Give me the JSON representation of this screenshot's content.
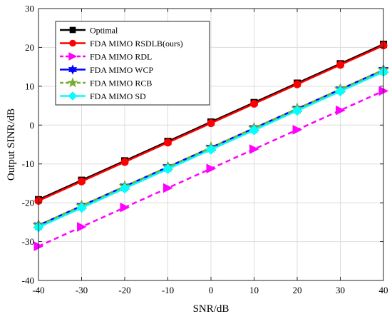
{
  "chart_data": {
    "type": "line",
    "xlabel": "SNR/dB",
    "ylabel": "Output SINR/dB",
    "xlim": [
      -40,
      40
    ],
    "ylim": [
      -40,
      30
    ],
    "xticks": [
      -40,
      -30,
      -20,
      -10,
      0,
      10,
      20,
      30,
      40
    ],
    "yticks": [
      -40,
      -30,
      -20,
      -10,
      0,
      10,
      20,
      30
    ],
    "grid": true,
    "legend_position": "top-left",
    "x": [
      -40,
      -30,
      -20,
      -10,
      0,
      10,
      20,
      30,
      40
    ],
    "series": [
      {
        "name": "Optimal",
        "color": "#000000",
        "marker": "square",
        "dash": "solid",
        "values": [
          -19.2,
          -14.2,
          -9.2,
          -4.2,
          0.8,
          5.8,
          10.8,
          15.8,
          20.8
        ]
      },
      {
        "name": "FDA MIMO RSDLB(ours)",
        "color": "#ff0000",
        "marker": "circle",
        "dash": "solid",
        "values": [
          -19.5,
          -14.5,
          -9.5,
          -4.5,
          0.5,
          5.5,
          10.5,
          15.5,
          20.5
        ]
      },
      {
        "name": "FDA MIMO RDL",
        "color": "#ff00ff",
        "marker": "triangle-right",
        "dash": "dashed",
        "values": [
          -31.2,
          -26.2,
          -21.2,
          -16.2,
          -11.2,
          -6.2,
          -1.2,
          3.8,
          8.8
        ]
      },
      {
        "name": "FDA MIMO WCP",
        "color": "#0000ff",
        "marker": "hexagram",
        "dash": "solid",
        "values": [
          -25.8,
          -20.8,
          -15.8,
          -10.8,
          -5.8,
          -0.8,
          4.2,
          9.2,
          14.2
        ]
      },
      {
        "name": "FDA MIMO RCB",
        "color": "#77ac30",
        "marker": "pentagram",
        "dash": "dashed",
        "values": [
          -25.8,
          -20.8,
          -15.8,
          -10.8,
          -5.8,
          -0.8,
          4.2,
          9.2,
          14.2
        ]
      },
      {
        "name": "FDA MIMO SD",
        "color": "#00ffff",
        "marker": "diamond",
        "dash": "solid",
        "values": [
          -26.3,
          -21.3,
          -16.3,
          -11.3,
          -6.3,
          -1.3,
          3.7,
          8.7,
          13.7
        ]
      }
    ]
  }
}
